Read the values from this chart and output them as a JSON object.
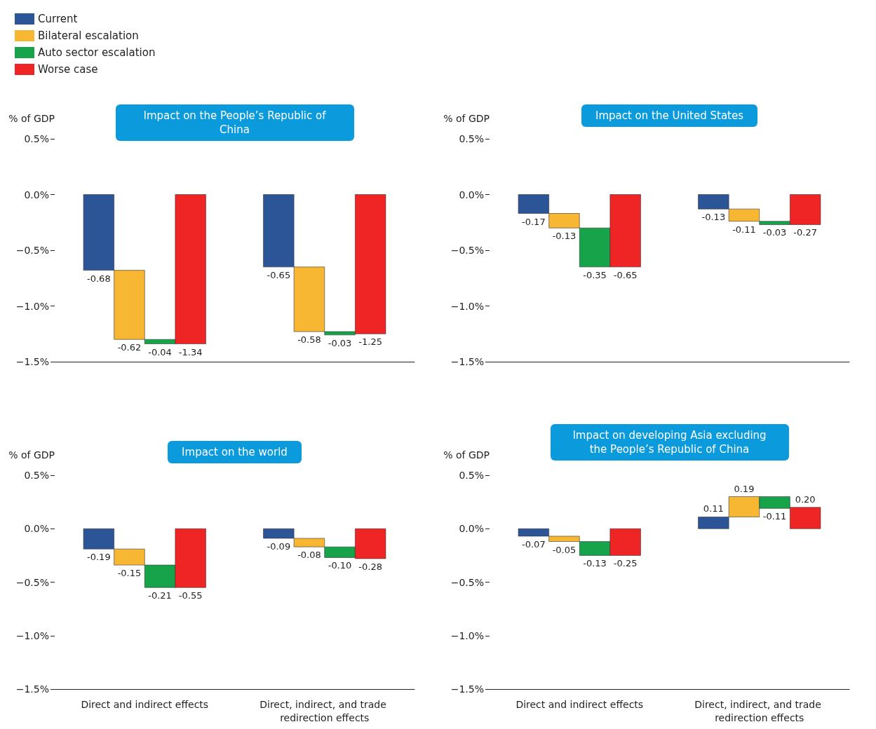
{
  "chart_data": [
    {
      "type": "bar",
      "title": "Impact on the People’s Republic of China",
      "ylabel": "% of GDP",
      "categories": [
        "Direct and indirect effects",
        "Direct, indirect, and trade redirection effects"
      ],
      "legend": "top left",
      "tick_labels": "y",
      "ylim": [
        -1.5,
        0.5
      ],
      "yticks": [
        {
          "value": -1.5,
          "label": "−1.5%"
        },
        {
          "value": -1,
          "label": "−1.0%"
        },
        {
          "value": -0.5,
          "label": "−0.5%"
        },
        {
          "value": 0,
          "label": "0.0%"
        },
        {
          "value": 0.5,
          "label": "0.5%"
        }
      ],
      "series": [
        {
          "name": "Current",
          "color": "#2b5597",
          "values": [
            -0.68,
            -0.65
          ],
          "base": [
            0,
            0
          ],
          "value_labels": [
            "-0.68",
            "-0.65"
          ]
        },
        {
          "name": "Bilateral escalation",
          "color": "#f7b733",
          "values": [
            -0.62,
            -0.58
          ],
          "base": [
            -0.68,
            -0.65
          ],
          "value_labels": [
            "-0.62",
            "-0.58"
          ]
        },
        {
          "name": "Auto sector escalation",
          "color": "#17a34a",
          "values": [
            -0.04,
            -0.03
          ],
          "base": [
            -1.3,
            -1.23
          ],
          "value_labels": [
            "-0.04",
            "-0.03"
          ]
        },
        {
          "name": "Worse case",
          "color": "#ee2524",
          "values": [
            -1.34,
            -1.25
          ],
          "base": [
            0,
            0
          ],
          "value_labels": [
            "-1.34",
            "-1.25"
          ]
        }
      ]
    },
    {
      "type": "bar",
      "title": "Impact on the United States",
      "ylabel": "% of GDP",
      "categories": [
        "Direct and indirect effects",
        "Direct, indirect, and trade redirection effects"
      ],
      "tick_labels": "y",
      "ylim": [
        -1.5,
        0.5
      ],
      "yticks": [
        {
          "value": -1.5,
          "label": "−1.5%"
        },
        {
          "value": -1,
          "label": "−1.0%"
        },
        {
          "value": -0.5,
          "label": "−0.5%"
        },
        {
          "value": 0,
          "label": "0.0%"
        },
        {
          "value": 0.5,
          "label": "0.5%"
        }
      ],
      "series": [
        {
          "color": "#2b5597",
          "values": [
            -0.17,
            -0.13
          ],
          "base": [
            0,
            0
          ],
          "value_labels": [
            "-0.17",
            "-0.13"
          ]
        },
        {
          "color": "#f7b733",
          "values": [
            -0.13,
            -0.11
          ],
          "base": [
            -0.17,
            -0.13
          ],
          "value_labels": [
            "-0.13",
            "-0.11"
          ]
        },
        {
          "color": "#17a34a",
          "values": [
            -0.35,
            -0.03
          ],
          "base": [
            -0.3,
            -0.24
          ],
          "value_labels": [
            "-0.35",
            "-0.03"
          ]
        },
        {
          "color": "#ee2524",
          "values": [
            -0.65,
            -0.27
          ],
          "base": [
            0,
            0
          ],
          "value_labels": [
            "-0.65",
            "-0.27"
          ]
        }
      ]
    },
    {
      "type": "bar",
      "title": "Impact on the world",
      "ylabel": "% of GDP",
      "categories": [
        "Direct and indirect effects",
        "Direct, indirect, and trade redirection effects"
      ],
      "ylim": [
        -1.5,
        0.5
      ],
      "yticks": [
        {
          "value": -1.5,
          "label": "−1.5%"
        },
        {
          "value": -1,
          "label": "−1.0%"
        },
        {
          "value": -0.5,
          "label": "−0.5%"
        },
        {
          "value": 0,
          "label": "0.0%"
        },
        {
          "value": 0.5,
          "label": "0.5%"
        }
      ],
      "series": [
        {
          "color": "#2b5597",
          "values": [
            -0.19,
            -0.09
          ],
          "base": [
            0,
            0
          ],
          "value_labels": [
            "-0.19",
            "-0.09"
          ]
        },
        {
          "color": "#f7b733",
          "values": [
            -0.15,
            -0.08
          ],
          "base": [
            -0.19,
            -0.09
          ],
          "value_labels": [
            "-0.15",
            "-0.08"
          ]
        },
        {
          "color": "#17a34a",
          "values": [
            -0.21,
            -0.1
          ],
          "base": [
            -0.34,
            -0.17
          ],
          "value_labels": [
            "-0.21",
            "-0.10"
          ]
        },
        {
          "color": "#ee2524",
          "values": [
            -0.55,
            -0.28
          ],
          "base": [
            0,
            0
          ],
          "value_labels": [
            "-0.55",
            "-0.28"
          ]
        }
      ]
    },
    {
      "type": "bar",
      "title": "Impact on developing Asia excluding the People’s Republic of China",
      "ylabel": "% of GDP",
      "categories": [
        "Direct and indirect effects",
        "Direct, indirect, and trade redirection effects"
      ],
      "ylim": [
        -1.5,
        0.5
      ],
      "yticks": [
        {
          "value": -1.5,
          "label": "−1.5%"
        },
        {
          "value": -1,
          "label": "−1.0%"
        },
        {
          "value": -0.5,
          "label": "−0.5%"
        },
        {
          "value": 0,
          "label": "0.0%"
        },
        {
          "value": 0.5,
          "label": "0.5%"
        }
      ],
      "series": [
        {
          "color": "#2b5597",
          "values": [
            -0.07,
            0.11
          ],
          "base": [
            0,
            0
          ],
          "value_labels": [
            "-0.07",
            "0.11"
          ]
        },
        {
          "color": "#f7b733",
          "values": [
            -0.05,
            0.19
          ],
          "base": [
            -0.07,
            0.11
          ],
          "value_labels": [
            "-0.05",
            "0.19"
          ]
        },
        {
          "color": "#17a34a",
          "values": [
            -0.13,
            -0.11
          ],
          "base": [
            -0.12,
            0.3
          ],
          "value_labels": [
            "-0.13",
            "-0.11"
          ]
        },
        {
          "color": "#ee2524",
          "values": [
            -0.25,
            0.2
          ],
          "base": [
            0,
            0
          ],
          "value_labels": [
            "-0.25",
            "0.20"
          ]
        }
      ]
    }
  ]
}
